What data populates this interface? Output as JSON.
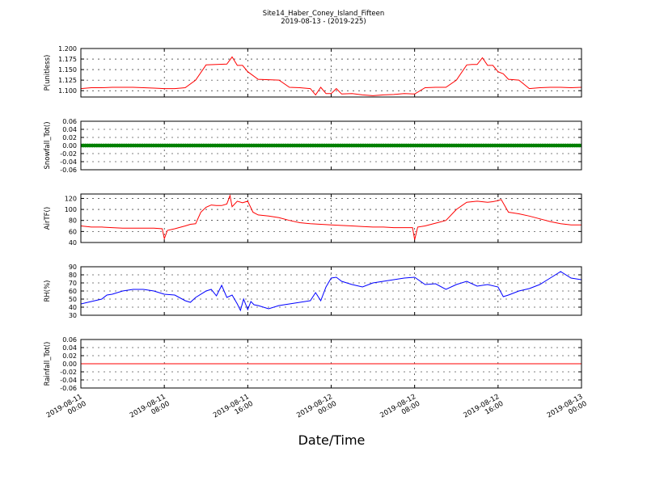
{
  "figure": {
    "title_line1": "Site14_Haber_Coney_Island_Fifteen",
    "title_line2": "2019-08-13 - (2019-225)",
    "xlabel": "Date/Time"
  },
  "x_axis": {
    "range_hours": [
      0,
      48
    ],
    "ticks": [
      {
        "hour": 0,
        "line1": "2019-08-11",
        "line2": "00:00"
      },
      {
        "hour": 8,
        "line1": "2019-08-11",
        "line2": "08:00"
      },
      {
        "hour": 16,
        "line1": "2019-08-11",
        "line2": "16:00"
      },
      {
        "hour": 24,
        "line1": "2019-08-12",
        "line2": "00:00"
      },
      {
        "hour": 32,
        "line1": "2019-08-12",
        "line2": "08:00"
      },
      {
        "hour": 40,
        "line1": "2019-08-12",
        "line2": "16:00"
      },
      {
        "hour": 48,
        "line1": "2019-08-13",
        "line2": "00:00"
      }
    ]
  },
  "chart_data": [
    {
      "type": "line",
      "ylabel": "P(unitless)",
      "ylim": [
        1.085,
        1.2
      ],
      "yticks": [
        1.1,
        1.125,
        1.15,
        1.175,
        1.2
      ],
      "ytick_labels": [
        "1.100",
        "1.125",
        "1.150",
        "1.175",
        "1.200"
      ],
      "grid": true,
      "color": "#ff0000",
      "x": [
        0,
        1,
        2,
        3,
        4,
        5,
        6,
        7,
        8,
        9,
        10,
        11,
        12,
        13,
        14,
        14.5,
        15,
        15.5,
        16,
        17,
        18,
        19,
        20,
        21,
        22,
        22.5,
        23,
        23.5,
        24,
        24.5,
        25,
        26,
        27,
        28,
        29,
        30,
        31,
        32,
        33,
        34,
        35,
        36,
        37,
        37.5,
        38,
        38.5,
        39,
        39.5,
        40,
        40.5,
        41,
        42,
        43,
        44,
        45,
        46,
        47,
        48
      ],
      "y": [
        1.105,
        1.107,
        1.107,
        1.108,
        1.108,
        1.108,
        1.107,
        1.106,
        1.105,
        1.105,
        1.107,
        1.125,
        1.161,
        1.162,
        1.163,
        1.18,
        1.16,
        1.16,
        1.145,
        1.127,
        1.126,
        1.125,
        1.108,
        1.107,
        1.105,
        1.09,
        1.108,
        1.093,
        1.093,
        1.105,
        1.092,
        1.093,
        1.09,
        1.088,
        1.09,
        1.091,
        1.093,
        1.092,
        1.107,
        1.108,
        1.108,
        1.125,
        1.161,
        1.162,
        1.162,
        1.178,
        1.16,
        1.16,
        1.145,
        1.14,
        1.127,
        1.125,
        1.105,
        1.107,
        1.108,
        1.108,
        1.107,
        1.108
      ]
    },
    {
      "type": "scatter",
      "ylabel": "Snowfall_Tot()",
      "ylim": [
        -0.06,
        0.06
      ],
      "yticks": [
        -0.06,
        -0.04,
        -0.02,
        0.0,
        0.02,
        0.04,
        0.06
      ],
      "ytick_labels": [
        "-0.06",
        "-0.04",
        "-0.02",
        "0.00",
        "0.02",
        "0.04",
        "0.06"
      ],
      "grid": true,
      "color": "#008000",
      "constant_value": 0.0,
      "x_range": [
        0,
        48
      ]
    },
    {
      "type": "line",
      "ylabel": "AirTF()",
      "ylim": [
        40,
        128
      ],
      "yticks": [
        40,
        60,
        80,
        100,
        120
      ],
      "ytick_labels": [
        "40",
        "60",
        "80",
        "100",
        "120"
      ],
      "grid": true,
      "color": "#ff0000",
      "x": [
        0,
        1,
        2,
        3,
        4,
        5,
        6,
        7,
        7.8,
        8,
        8.3,
        9,
        10,
        10.5,
        11,
        11.5,
        12,
        12.5,
        13,
        13.5,
        14,
        14.3,
        14.5,
        15,
        15.5,
        16,
        16.5,
        17,
        18,
        19,
        20,
        21,
        22,
        23,
        24,
        25,
        26,
        27,
        28,
        29,
        30,
        31,
        31.8,
        32,
        32.3,
        33,
        34,
        35,
        36,
        37,
        38,
        39,
        39.5,
        40,
        40.3,
        41,
        42,
        43,
        44,
        45,
        46,
        47,
        48
      ],
      "y": [
        70,
        68,
        68,
        67,
        66,
        66,
        66,
        66,
        65,
        47,
        62,
        65,
        70,
        73,
        74,
        95,
        104,
        108,
        107,
        107,
        110,
        125,
        105,
        115,
        112,
        115,
        95,
        90,
        88,
        85,
        80,
        76,
        74,
        73,
        72,
        71,
        70,
        69,
        68,
        68,
        67,
        67,
        67,
        45,
        68,
        70,
        75,
        80,
        100,
        113,
        115,
        113,
        114,
        116,
        118,
        95,
        92,
        88,
        83,
        78,
        74,
        72,
        72
      ]
    },
    {
      "type": "line",
      "ylabel": "RH(%)",
      "ylim": [
        30,
        90
      ],
      "yticks": [
        30,
        40,
        50,
        60,
        70,
        80,
        90
      ],
      "ytick_labels": [
        "30",
        "40",
        "50",
        "60",
        "70",
        "80",
        "90"
      ],
      "grid": true,
      "color": "#0000ff",
      "x": [
        0,
        1,
        2,
        2.5,
        3,
        4,
        5,
        6,
        7,
        7.5,
        8,
        9,
        10,
        10.5,
        11,
        12,
        12.5,
        13,
        13.5,
        14,
        14.5,
        15,
        15.3,
        15.6,
        16,
        16.3,
        16.6,
        17,
        17.5,
        18,
        19,
        20,
        21,
        22,
        22.5,
        23,
        23.5,
        24,
        24.5,
        25,
        26,
        27,
        28,
        29,
        30,
        31,
        32,
        33,
        34,
        35,
        36,
        37,
        38,
        39,
        40,
        40.5,
        41,
        42,
        43,
        44,
        45,
        46,
        47,
        48
      ],
      "y": [
        44,
        47,
        50,
        55,
        56,
        60,
        62,
        62,
        60,
        58,
        56,
        55,
        48,
        46,
        52,
        60,
        62,
        54,
        67,
        52,
        55,
        44,
        36,
        50,
        37,
        47,
        43,
        42,
        40,
        38,
        42,
        44,
        46,
        48,
        58,
        48,
        65,
        76,
        77,
        72,
        68,
        65,
        70,
        72,
        74,
        76,
        77,
        68,
        69,
        62,
        68,
        72,
        66,
        68,
        65,
        53,
        55,
        60,
        63,
        68,
        76,
        84,
        76,
        74
      ]
    },
    {
      "type": "line",
      "ylabel": "Rainfall_Tot()",
      "ylim": [
        -0.06,
        0.06
      ],
      "yticks": [
        -0.06,
        -0.04,
        -0.02,
        0.0,
        0.02,
        0.04,
        0.06
      ],
      "ytick_labels": [
        "-0.06",
        "-0.04",
        "-0.02",
        "0.00",
        "0.02",
        "0.04",
        "0.06"
      ],
      "grid": true,
      "color": "#ff0000",
      "x": [
        0,
        48
      ],
      "y": [
        0.0,
        0.0
      ]
    }
  ]
}
